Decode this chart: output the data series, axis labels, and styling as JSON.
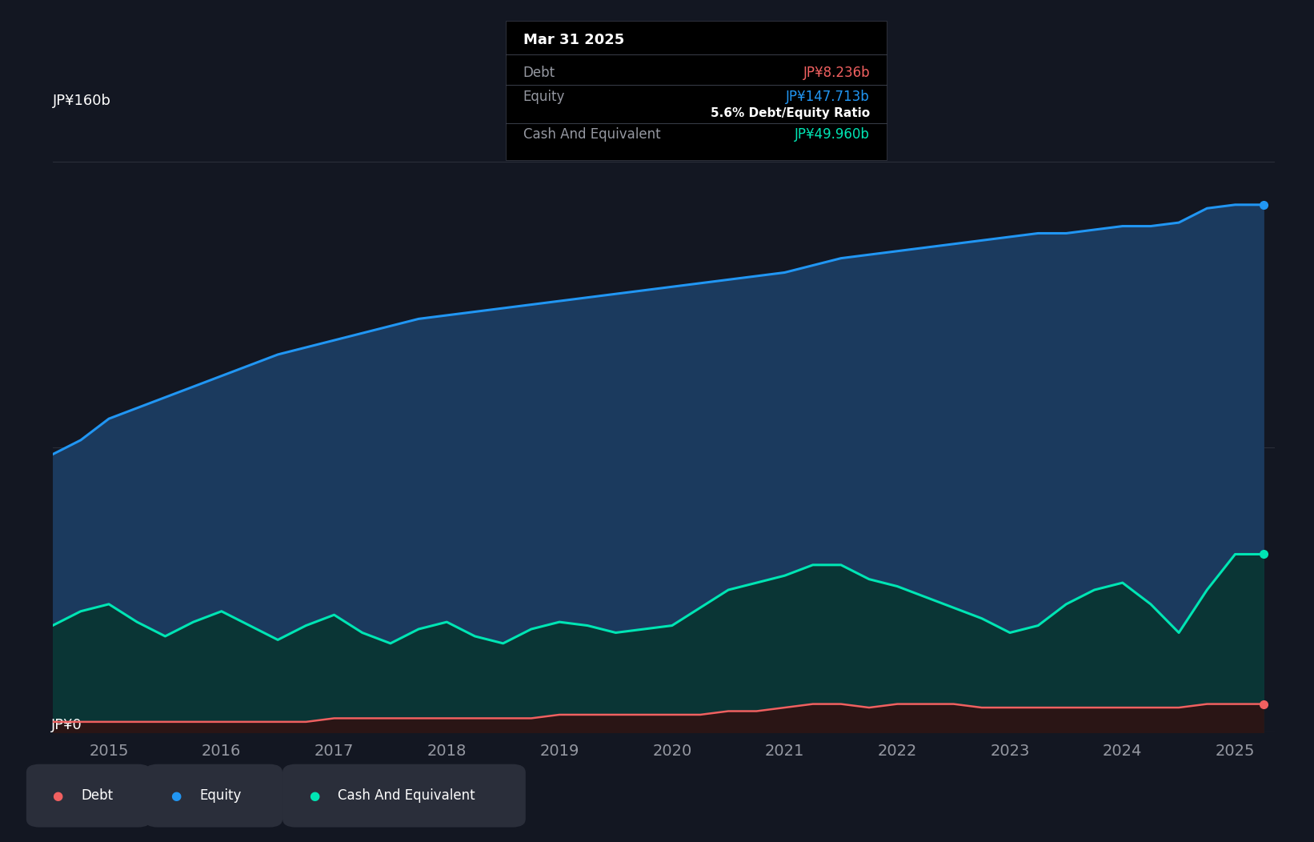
{
  "bg_color": "#131722",
  "plot_bg_color": "#131722",
  "equity_color": "#2196f3",
  "equity_fill": "#1b3a5e",
  "cash_color": "#00e5b4",
  "cash_fill": "#0a3535",
  "debt_color": "#f06060",
  "debt_fill": "#2a1515",
  "grid_color": "#2a2e39",
  "text_color": "#9598a1",
  "white": "#ffffff",
  "ylabel_text": "JP¥160b",
  "y0_text": "JP¥0",
  "tooltip_bg": "#000000",
  "tooltip_border": "#3a3e4a",
  "tooltip_title": "Mar 31 2025",
  "tooltip_debt_label": "Debt",
  "tooltip_debt_value": "JP¥8.236b",
  "tooltip_debt_color": "#f06060",
  "tooltip_equity_label": "Equity",
  "tooltip_equity_value": "JP¥147.713b",
  "tooltip_equity_color": "#2196f3",
  "tooltip_ratio": "5.6% Debt/Equity Ratio",
  "tooltip_cash_label": "Cash And Equivalent",
  "tooltip_cash_value": "JP¥49.960b",
  "tooltip_cash_color": "#00e5b4",
  "legend_debt": "Debt",
  "legend_equity": "Equity",
  "legend_cash": "Cash And Equivalent",
  "x_ticks": [
    2015,
    2016,
    2017,
    2018,
    2019,
    2020,
    2021,
    2022,
    2023,
    2024,
    2025
  ],
  "dates": [
    2014.5,
    2014.75,
    2015.0,
    2015.25,
    2015.5,
    2015.75,
    2016.0,
    2016.25,
    2016.5,
    2016.75,
    2017.0,
    2017.25,
    2017.5,
    2017.75,
    2018.0,
    2018.25,
    2018.5,
    2018.75,
    2019.0,
    2019.25,
    2019.5,
    2019.75,
    2020.0,
    2020.25,
    2020.5,
    2020.75,
    2021.0,
    2021.25,
    2021.5,
    2021.75,
    2022.0,
    2022.25,
    2022.5,
    2022.75,
    2023.0,
    2023.25,
    2023.5,
    2023.75,
    2024.0,
    2024.25,
    2024.5,
    2024.75,
    2025.0,
    2025.25
  ],
  "equity": [
    78,
    82,
    88,
    91,
    94,
    97,
    100,
    103,
    106,
    108,
    110,
    112,
    114,
    116,
    117,
    118,
    119,
    120,
    121,
    122,
    123,
    124,
    125,
    126,
    127,
    128,
    129,
    131,
    133,
    134,
    135,
    136,
    137,
    138,
    139,
    140,
    140,
    141,
    142,
    142,
    143,
    147,
    148,
    148
  ],
  "cash": [
    30,
    34,
    36,
    31,
    27,
    31,
    34,
    30,
    26,
    30,
    33,
    28,
    25,
    29,
    31,
    27,
    25,
    29,
    31,
    30,
    28,
    29,
    30,
    35,
    40,
    42,
    44,
    47,
    47,
    43,
    41,
    38,
    35,
    32,
    28,
    30,
    36,
    40,
    42,
    36,
    28,
    40,
    50,
    50
  ],
  "debt": [
    3,
    3,
    3,
    3,
    3,
    3,
    3,
    3,
    3,
    3,
    4,
    4,
    4,
    4,
    4,
    4,
    4,
    4,
    5,
    5,
    5,
    5,
    5,
    5,
    6,
    6,
    7,
    8,
    8,
    7,
    8,
    8,
    8,
    7,
    7,
    7,
    7,
    7,
    7,
    7,
    7,
    8,
    8,
    8
  ],
  "ylim": [
    0,
    170
  ],
  "xlim": [
    2014.5,
    2025.35
  ],
  "legend_bg": "#2a2e3a"
}
